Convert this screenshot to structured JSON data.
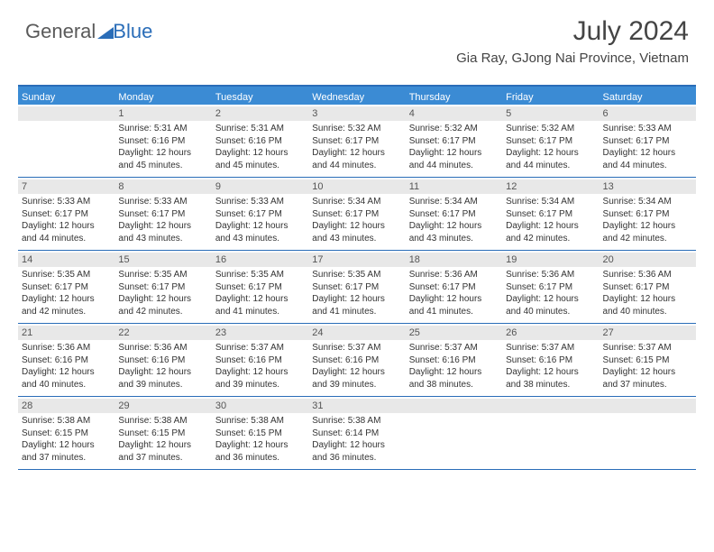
{
  "logo": {
    "general": "General",
    "blue": "Blue"
  },
  "title": {
    "month": "July 2024",
    "location": "Gia Ray, GJong Nai Province, Vietnam"
  },
  "colors": {
    "header_bg": "#3b8bd4",
    "border": "#2a6db8",
    "stripe": "#e8e8e8",
    "text": "#333333",
    "logo_gray": "#5a5a5a",
    "logo_blue": "#2a6db8"
  },
  "day_headers": [
    "Sunday",
    "Monday",
    "Tuesday",
    "Wednesday",
    "Thursday",
    "Friday",
    "Saturday"
  ],
  "weeks": [
    [
      {
        "n": "",
        "sr": "",
        "ss": "",
        "dl": ""
      },
      {
        "n": "1",
        "sr": "Sunrise: 5:31 AM",
        "ss": "Sunset: 6:16 PM",
        "dl": "Daylight: 12 hours and 45 minutes."
      },
      {
        "n": "2",
        "sr": "Sunrise: 5:31 AM",
        "ss": "Sunset: 6:16 PM",
        "dl": "Daylight: 12 hours and 45 minutes."
      },
      {
        "n": "3",
        "sr": "Sunrise: 5:32 AM",
        "ss": "Sunset: 6:17 PM",
        "dl": "Daylight: 12 hours and 44 minutes."
      },
      {
        "n": "4",
        "sr": "Sunrise: 5:32 AM",
        "ss": "Sunset: 6:17 PM",
        "dl": "Daylight: 12 hours and 44 minutes."
      },
      {
        "n": "5",
        "sr": "Sunrise: 5:32 AM",
        "ss": "Sunset: 6:17 PM",
        "dl": "Daylight: 12 hours and 44 minutes."
      },
      {
        "n": "6",
        "sr": "Sunrise: 5:33 AM",
        "ss": "Sunset: 6:17 PM",
        "dl": "Daylight: 12 hours and 44 minutes."
      }
    ],
    [
      {
        "n": "7",
        "sr": "Sunrise: 5:33 AM",
        "ss": "Sunset: 6:17 PM",
        "dl": "Daylight: 12 hours and 44 minutes."
      },
      {
        "n": "8",
        "sr": "Sunrise: 5:33 AM",
        "ss": "Sunset: 6:17 PM",
        "dl": "Daylight: 12 hours and 43 minutes."
      },
      {
        "n": "9",
        "sr": "Sunrise: 5:33 AM",
        "ss": "Sunset: 6:17 PM",
        "dl": "Daylight: 12 hours and 43 minutes."
      },
      {
        "n": "10",
        "sr": "Sunrise: 5:34 AM",
        "ss": "Sunset: 6:17 PM",
        "dl": "Daylight: 12 hours and 43 minutes."
      },
      {
        "n": "11",
        "sr": "Sunrise: 5:34 AM",
        "ss": "Sunset: 6:17 PM",
        "dl": "Daylight: 12 hours and 43 minutes."
      },
      {
        "n": "12",
        "sr": "Sunrise: 5:34 AM",
        "ss": "Sunset: 6:17 PM",
        "dl": "Daylight: 12 hours and 42 minutes."
      },
      {
        "n": "13",
        "sr": "Sunrise: 5:34 AM",
        "ss": "Sunset: 6:17 PM",
        "dl": "Daylight: 12 hours and 42 minutes."
      }
    ],
    [
      {
        "n": "14",
        "sr": "Sunrise: 5:35 AM",
        "ss": "Sunset: 6:17 PM",
        "dl": "Daylight: 12 hours and 42 minutes."
      },
      {
        "n": "15",
        "sr": "Sunrise: 5:35 AM",
        "ss": "Sunset: 6:17 PM",
        "dl": "Daylight: 12 hours and 42 minutes."
      },
      {
        "n": "16",
        "sr": "Sunrise: 5:35 AM",
        "ss": "Sunset: 6:17 PM",
        "dl": "Daylight: 12 hours and 41 minutes."
      },
      {
        "n": "17",
        "sr": "Sunrise: 5:35 AM",
        "ss": "Sunset: 6:17 PM",
        "dl": "Daylight: 12 hours and 41 minutes."
      },
      {
        "n": "18",
        "sr": "Sunrise: 5:36 AM",
        "ss": "Sunset: 6:17 PM",
        "dl": "Daylight: 12 hours and 41 minutes."
      },
      {
        "n": "19",
        "sr": "Sunrise: 5:36 AM",
        "ss": "Sunset: 6:17 PM",
        "dl": "Daylight: 12 hours and 40 minutes."
      },
      {
        "n": "20",
        "sr": "Sunrise: 5:36 AM",
        "ss": "Sunset: 6:17 PM",
        "dl": "Daylight: 12 hours and 40 minutes."
      }
    ],
    [
      {
        "n": "21",
        "sr": "Sunrise: 5:36 AM",
        "ss": "Sunset: 6:16 PM",
        "dl": "Daylight: 12 hours and 40 minutes."
      },
      {
        "n": "22",
        "sr": "Sunrise: 5:36 AM",
        "ss": "Sunset: 6:16 PM",
        "dl": "Daylight: 12 hours and 39 minutes."
      },
      {
        "n": "23",
        "sr": "Sunrise: 5:37 AM",
        "ss": "Sunset: 6:16 PM",
        "dl": "Daylight: 12 hours and 39 minutes."
      },
      {
        "n": "24",
        "sr": "Sunrise: 5:37 AM",
        "ss": "Sunset: 6:16 PM",
        "dl": "Daylight: 12 hours and 39 minutes."
      },
      {
        "n": "25",
        "sr": "Sunrise: 5:37 AM",
        "ss": "Sunset: 6:16 PM",
        "dl": "Daylight: 12 hours and 38 minutes."
      },
      {
        "n": "26",
        "sr": "Sunrise: 5:37 AM",
        "ss": "Sunset: 6:16 PM",
        "dl": "Daylight: 12 hours and 38 minutes."
      },
      {
        "n": "27",
        "sr": "Sunrise: 5:37 AM",
        "ss": "Sunset: 6:15 PM",
        "dl": "Daylight: 12 hours and 37 minutes."
      }
    ],
    [
      {
        "n": "28",
        "sr": "Sunrise: 5:38 AM",
        "ss": "Sunset: 6:15 PM",
        "dl": "Daylight: 12 hours and 37 minutes."
      },
      {
        "n": "29",
        "sr": "Sunrise: 5:38 AM",
        "ss": "Sunset: 6:15 PM",
        "dl": "Daylight: 12 hours and 37 minutes."
      },
      {
        "n": "30",
        "sr": "Sunrise: 5:38 AM",
        "ss": "Sunset: 6:15 PM",
        "dl": "Daylight: 12 hours and 36 minutes."
      },
      {
        "n": "31",
        "sr": "Sunrise: 5:38 AM",
        "ss": "Sunset: 6:14 PM",
        "dl": "Daylight: 12 hours and 36 minutes."
      },
      {
        "n": "",
        "sr": "",
        "ss": "",
        "dl": ""
      },
      {
        "n": "",
        "sr": "",
        "ss": "",
        "dl": ""
      },
      {
        "n": "",
        "sr": "",
        "ss": "",
        "dl": ""
      }
    ]
  ]
}
